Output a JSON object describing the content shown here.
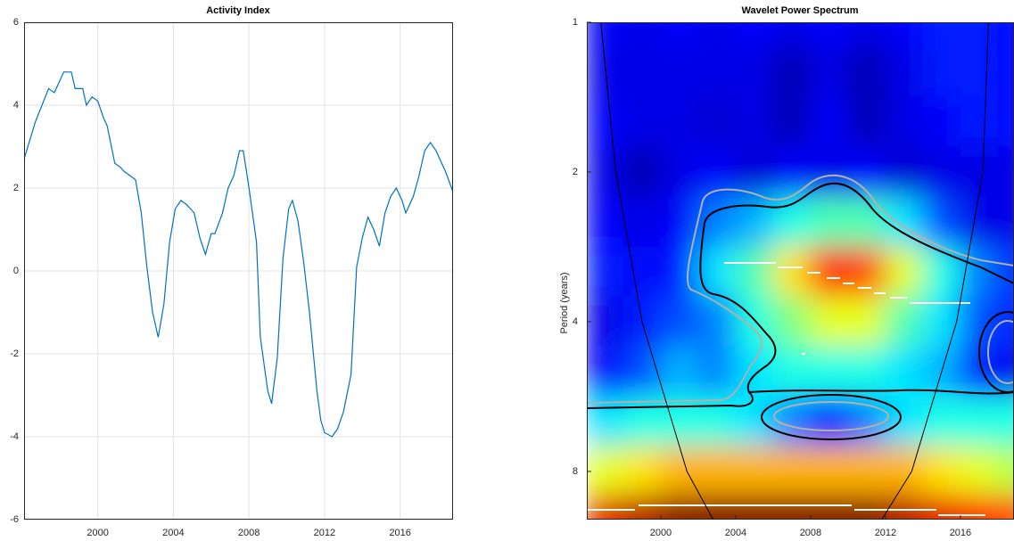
{
  "chart_data": [
    {
      "type": "line",
      "title": "Activity Index",
      "color": "#0072bd",
      "x": [
        1996.1,
        1996.7,
        1997.4,
        1997.7,
        1998.2,
        1998.6,
        1998.8,
        1999.2,
        1999.4,
        1999.7,
        2000.0,
        2000.3,
        2000.5,
        2000.9,
        2001.2,
        2001.4,
        2001.7,
        2002.0,
        2002.3,
        2002.6,
        2002.9,
        2003.2,
        2003.5,
        2003.8,
        2004.1,
        2004.4,
        2004.7,
        2005.1,
        2005.4,
        2005.7,
        2006.0,
        2006.2,
        2006.6,
        2006.9,
        2007.2,
        2007.5,
        2007.7,
        2008.0,
        2008.4,
        2008.6,
        2009.0,
        2009.2,
        2009.5,
        2009.8,
        2010.1,
        2010.3,
        2010.6,
        2010.9,
        2011.2,
        2011.6,
        2011.8,
        2012.0,
        2012.4,
        2012.7,
        2013.0,
        2013.4,
        2013.7,
        2014.0,
        2014.3,
        2014.6,
        2014.9,
        2015.2,
        2015.5,
        2015.8,
        2016.1,
        2016.3,
        2016.7,
        2017.0,
        2017.3,
        2017.6,
        2017.9,
        2018.4,
        2018.8
      ],
      "y": [
        2.7,
        3.6,
        4.4,
        4.3,
        4.8,
        4.8,
        4.4,
        4.4,
        4.0,
        4.2,
        4.1,
        3.7,
        3.5,
        2.6,
        2.5,
        2.4,
        2.3,
        2.2,
        1.4,
        0.1,
        -1.0,
        -1.6,
        -0.8,
        0.7,
        1.5,
        1.7,
        1.6,
        1.4,
        0.8,
        0.4,
        0.9,
        0.9,
        1.4,
        2.0,
        2.3,
        2.9,
        2.9,
        2.0,
        0.7,
        -1.6,
        -2.9,
        -3.2,
        -2.1,
        0.3,
        1.5,
        1.7,
        1.2,
        0.2,
        -1.0,
        -2.9,
        -3.6,
        -3.9,
        -4.0,
        -3.8,
        -3.4,
        -2.5,
        0.1,
        0.8,
        1.3,
        1.0,
        0.6,
        1.4,
        1.8,
        2.0,
        1.7,
        1.4,
        1.8,
        2.3,
        2.9,
        3.1,
        2.9,
        2.4,
        1.9
      ],
      "xlim": [
        1996.1,
        2018.8
      ],
      "xticks": [
        2000,
        2004,
        2008,
        2012,
        2016
      ],
      "ylim": [
        -6,
        6
      ],
      "yticks": [
        -6,
        -4,
        -2,
        0,
        2,
        4,
        6
      ],
      "grid": true
    },
    {
      "type": "heatmap",
      "title": "Wavelet Power Spectrum",
      "y_label": "Period (years)",
      "colormap": "jet",
      "zlim": [
        0,
        1
      ],
      "log_y": true,
      "y_reversed": true,
      "x": [
        1997,
        1999,
        2001,
        2003,
        2005,
        2007,
        2009,
        2011,
        2013,
        2015,
        2017,
        2019
      ],
      "y": [
        1,
        1.26,
        1.59,
        2,
        2.52,
        3.17,
        4,
        5.04,
        6.35,
        8,
        10
      ],
      "z": [
        [
          0.12,
          0.1,
          0.12,
          0.1,
          0.12,
          0.1,
          0.12,
          0.1,
          0.12,
          0.15,
          0.15,
          0.12
        ],
        [
          0.1,
          0.1,
          0.1,
          0.1,
          0.1,
          0.05,
          0.1,
          0.05,
          0.1,
          0.15,
          0.15,
          0.12
        ],
        [
          0.12,
          0.1,
          0.1,
          0.08,
          0.1,
          0.05,
          0.12,
          0.05,
          0.1,
          0.12,
          0.15,
          0.12
        ],
        [
          0.1,
          0.05,
          0.1,
          0.12,
          0.08,
          0.12,
          0.1,
          0.12,
          0.08,
          0.1,
          0.1,
          0.1
        ],
        [
          0.12,
          0.1,
          0.12,
          0.25,
          0.3,
          0.4,
          0.45,
          0.45,
          0.35,
          0.2,
          0.1,
          0.1
        ],
        [
          0.15,
          0.12,
          0.15,
          0.35,
          0.45,
          0.65,
          0.85,
          0.8,
          0.6,
          0.4,
          0.25,
          0.15
        ],
        [
          0.1,
          0.15,
          0.2,
          0.25,
          0.4,
          0.5,
          0.6,
          0.6,
          0.45,
          0.35,
          0.2,
          0.15
        ],
        [
          0.12,
          0.2,
          0.3,
          0.25,
          0.35,
          0.4,
          0.4,
          0.4,
          0.35,
          0.3,
          0.15,
          0.1
        ],
        [
          0.35,
          0.4,
          0.4,
          0.4,
          0.35,
          0.25,
          0.15,
          0.25,
          0.35,
          0.4,
          0.4,
          0.4
        ],
        [
          0.6,
          0.65,
          0.7,
          0.7,
          0.7,
          0.7,
          0.7,
          0.7,
          0.7,
          0.65,
          0.6,
          0.55
        ],
        [
          0.9,
          0.95,
          1,
          1,
          1,
          1,
          1,
          1,
          0.95,
          0.9,
          0.85,
          0.8
        ]
      ],
      "coi_x": [
        1996.8,
        1997.6,
        1999.0,
        2001.4,
        2002.8,
        null,
        2011.8,
        2013.4,
        2015.8,
        2017.2,
        2017.5
      ],
      "coi_period": [
        1,
        2,
        4,
        8,
        10,
        null,
        10,
        8,
        4,
        2,
        1
      ],
      "xlim": [
        1996.05,
        2018.86
      ],
      "xticks": [
        2000,
        2004,
        2008,
        2012,
        2016
      ],
      "ylim": [
        1,
        10
      ],
      "yticks": [
        1,
        2,
        4,
        8
      ]
    }
  ]
}
